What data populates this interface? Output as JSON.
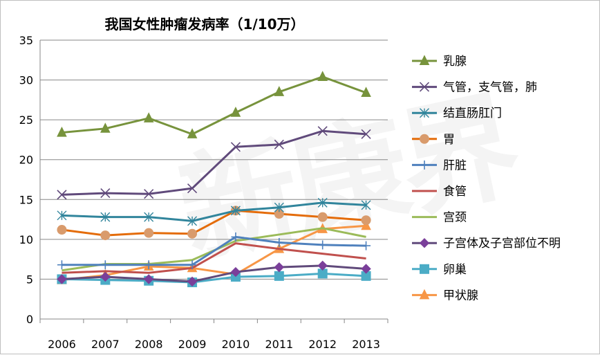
{
  "chart_data": {
    "type": "line",
    "title": "我国女性肿瘤发病率（1/10万）",
    "watermark": "新康界",
    "xlabel": "",
    "ylabel": "",
    "categories": [
      "2006",
      "2007",
      "2008",
      "2009",
      "2010",
      "2011",
      "2012",
      "2013"
    ],
    "ylim": [
      0,
      35
    ],
    "yticks": [
      0,
      5,
      10,
      15,
      20,
      25,
      30,
      35
    ],
    "grid": "horizontal",
    "legend_position": "right",
    "series": [
      {
        "name": "乳腺",
        "color": "#77933c",
        "marker": "triangle",
        "values": [
          23.4,
          23.9,
          25.2,
          23.2,
          25.9,
          28.5,
          30.4,
          28.4
        ]
      },
      {
        "name": "气管，支气管，肺",
        "color": "#604a7b",
        "marker": "x",
        "values": [
          15.6,
          15.8,
          15.7,
          16.4,
          21.6,
          21.9,
          23.6,
          23.2
        ]
      },
      {
        "name": "结直肠肛门",
        "color": "#31859c",
        "marker": "asterisk",
        "values": [
          13.0,
          12.8,
          12.8,
          12.3,
          13.6,
          14.0,
          14.6,
          14.3
        ]
      },
      {
        "name": "胃",
        "color": "#e46c0a",
        "marker": "circle",
        "markerColor": "#d99b6c",
        "values": [
          11.2,
          10.5,
          10.8,
          10.7,
          13.6,
          13.2,
          12.8,
          12.4
        ]
      },
      {
        "name": "肝脏",
        "color": "#4f81bd",
        "marker": "plus",
        "values": [
          6.8,
          6.8,
          6.8,
          6.8,
          10.3,
          9.6,
          9.3,
          9.2
        ]
      },
      {
        "name": "食管",
        "color": "#c0504d",
        "marker": "none",
        "values": [
          5.8,
          6.0,
          5.8,
          6.4,
          9.5,
          8.8,
          8.2,
          7.6
        ]
      },
      {
        "name": "宫颈",
        "color": "#9bbb59",
        "marker": "none",
        "values": [
          6.1,
          6.9,
          6.9,
          7.4,
          9.8,
          10.6,
          11.4,
          10.3
        ]
      },
      {
        "name": "子宫体及子宫部位不明",
        "color": "#604a7b",
        "marker": "diamond",
        "markerColor": "#7a3f9a",
        "values": [
          5.0,
          5.3,
          5.0,
          4.7,
          5.9,
          6.5,
          6.7,
          6.3
        ]
      },
      {
        "name": "卵巢",
        "color": "#4bacc6",
        "marker": "square",
        "values": [
          5.0,
          4.9,
          4.8,
          4.6,
          5.3,
          5.4,
          5.7,
          5.4
        ]
      },
      {
        "name": "甲状腺",
        "color": "#f79646",
        "marker": "triangle",
        "values": [
          4.9,
          5.5,
          6.6,
          6.4,
          5.6,
          8.8,
          11.3,
          11.7
        ]
      }
    ]
  }
}
